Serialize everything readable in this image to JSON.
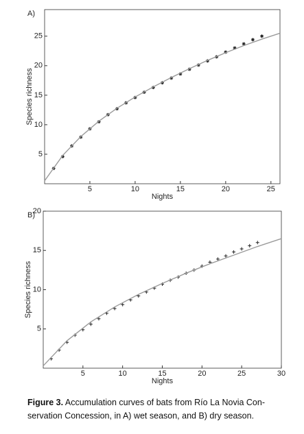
{
  "chart_data": [
    {
      "type": "scatter",
      "panel_label": "A)",
      "xlabel": "Nights",
      "ylabel": "Species richness",
      "xlim": [
        0,
        26
      ],
      "ylim": [
        0,
        29.5
      ],
      "xticks": [
        5,
        10,
        15,
        20,
        25
      ],
      "yticks": [
        5,
        10,
        15,
        20,
        25
      ],
      "series": [
        {
          "mode": "markers",
          "marker": "star",
          "color": "#222",
          "x": [
            1,
            2,
            3,
            4,
            5,
            6,
            7,
            8,
            9,
            10,
            11,
            12,
            13,
            14,
            15,
            16,
            17,
            18,
            19,
            20,
            21,
            22,
            23,
            24
          ],
          "values": [
            2.6,
            4.6,
            6.4,
            7.9,
            9.3,
            10.5,
            11.7,
            12.7,
            13.7,
            14.6,
            15.5,
            16.3,
            17.1,
            17.9,
            18.6,
            19.4,
            20.1,
            20.8,
            21.5,
            22.3,
            23.0,
            23.7,
            24.4,
            25.0
          ]
        },
        {
          "mode": "line",
          "color": "#9a9a9a",
          "x": [
            0,
            2,
            4,
            6,
            8,
            10,
            12,
            14,
            16,
            18,
            20,
            22,
            24,
            26
          ],
          "values": [
            0.5,
            4.8,
            8.0,
            10.6,
            12.8,
            14.7,
            16.4,
            18.0,
            19.5,
            20.9,
            22.2,
            23.4,
            24.5,
            25.5
          ]
        }
      ]
    },
    {
      "type": "scatter",
      "panel_label": "B)",
      "xlabel": "Nights",
      "ylabel": "Species richness",
      "xlim": [
        0,
        30
      ],
      "ylim": [
        0,
        20
      ],
      "xticks": [
        5,
        10,
        15,
        20,
        25,
        30
      ],
      "yticks": [
        5,
        10,
        15,
        20
      ],
      "series": [
        {
          "mode": "markers",
          "marker": "plus",
          "color": "#222",
          "x": [
            1,
            2,
            3,
            4,
            5,
            6,
            7,
            8,
            9,
            10,
            11,
            12,
            13,
            14,
            15,
            16,
            17,
            18,
            19,
            20,
            21,
            22,
            23,
            24,
            25,
            26,
            27
          ],
          "values": [
            1.2,
            2.3,
            3.3,
            4.2,
            4.9,
            5.6,
            6.3,
            7.0,
            7.6,
            8.1,
            8.7,
            9.2,
            9.7,
            10.2,
            10.7,
            11.2,
            11.6,
            12.1,
            12.5,
            13.0,
            13.5,
            13.9,
            14.3,
            14.8,
            15.2,
            15.6,
            16.0
          ]
        },
        {
          "mode": "line",
          "color": "#9a9a9a",
          "x": [
            0,
            3,
            6,
            9,
            12,
            15,
            18,
            21,
            24,
            27,
            30
          ],
          "values": [
            0.3,
            3.5,
            5.9,
            7.8,
            9.4,
            10.8,
            12.1,
            13.3,
            14.4,
            15.5,
            16.5
          ]
        }
      ]
    }
  ],
  "caption": {
    "label": "Figure 3.",
    "lines": [
      "Accumulation curves of bats from Río La Novia Con-",
      "servation Concession, in A) wet season, and B) dry season."
    ]
  }
}
